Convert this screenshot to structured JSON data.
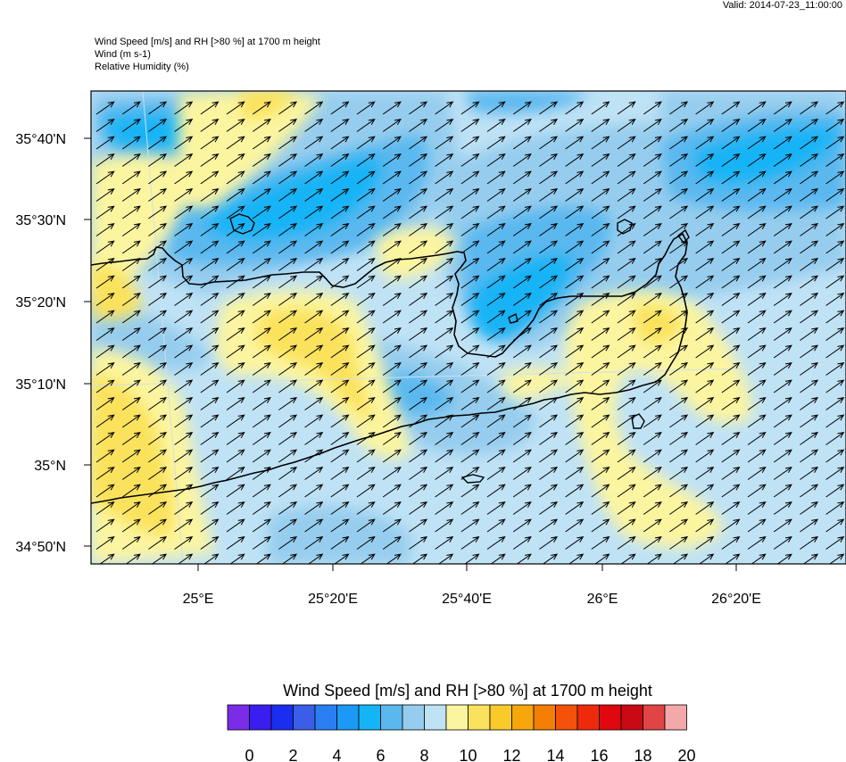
{
  "valid_label": "Valid: 2014-07-23_11:00:00",
  "header": {
    "line1": "Wind Speed [m/s] and RH [>80 %] at 1700 m height",
    "line2": "Wind   (m s-1)",
    "line3": "Relative Humidity   (%)"
  },
  "map": {
    "lat_ticks": [
      "35°40'N",
      "35°30'N",
      "35°20'N",
      "35°10'N",
      "35°N",
      "34°50'N"
    ],
    "lon_ticks": [
      "25°E",
      "25°20'E",
      "25°40'E",
      "26°E",
      "26°20'E"
    ],
    "wind_direction_deg": 35
  },
  "colorbar": {
    "title": "Wind Speed [m/s] and RH [>80 %] at 1700 m height",
    "labels": [
      "0",
      "2",
      "4",
      "6",
      "8",
      "10",
      "12",
      "14",
      "16",
      "18",
      "20"
    ],
    "colors": [
      "#7a2ce8",
      "#3a1ef0",
      "#1a2ef0",
      "#3a5ee8",
      "#2a7ef4",
      "#1a9af6",
      "#14b4f6",
      "#5ab8ef",
      "#96cdee",
      "#bfe2f5",
      "#fcf5a0",
      "#fbe25c",
      "#f9ca2a",
      "#f5a70c",
      "#f47e06",
      "#f4510a",
      "#ee2a0a",
      "#e0080e",
      "#c80a14",
      "#e04444",
      "#f5a8a8"
    ]
  }
}
